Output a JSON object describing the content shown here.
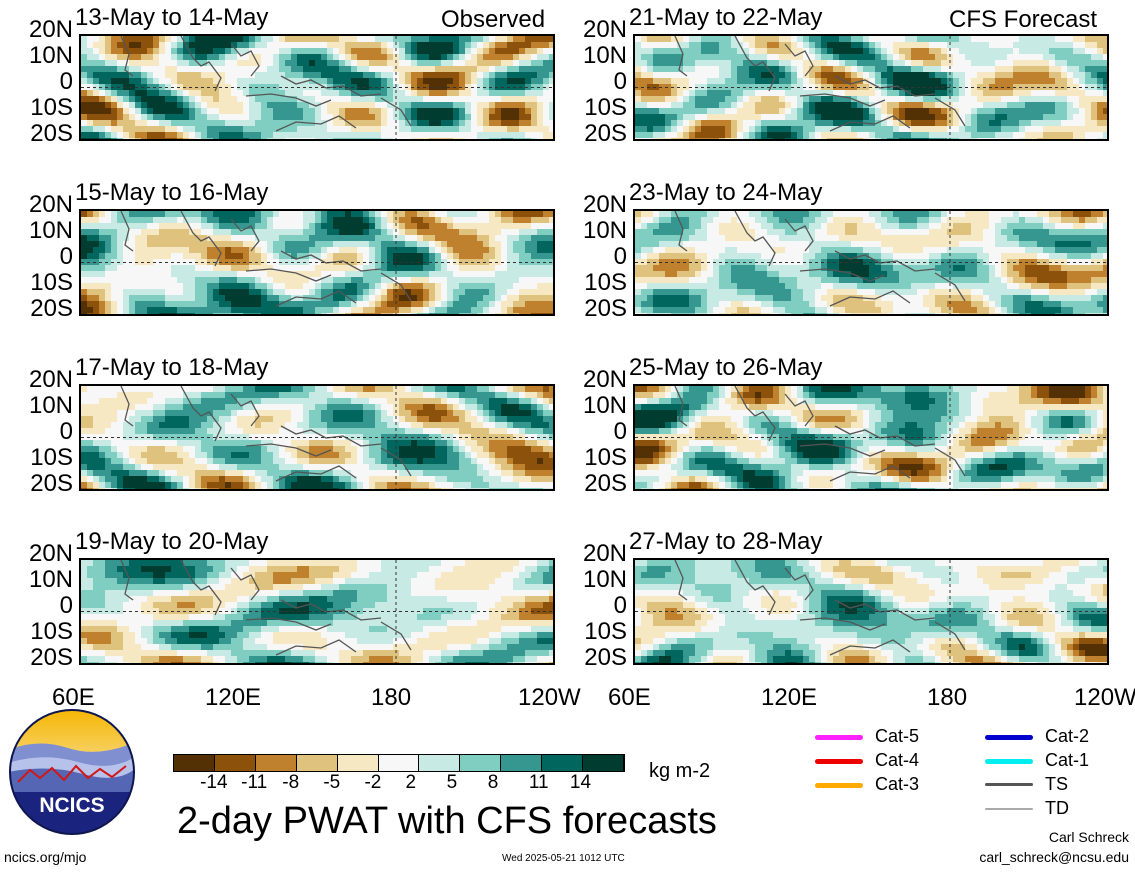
{
  "header": {
    "left_tag": "Observed",
    "right_tag": "CFS Forecast"
  },
  "panels_left": [
    {
      "title": "13-May to 14-May",
      "seed": 3
    },
    {
      "title": "15-May to 16-May",
      "seed": 11
    },
    {
      "title": "17-May to 18-May",
      "seed": 19
    },
    {
      "title": "19-May to 20-May",
      "seed": 27
    }
  ],
  "panels_right": [
    {
      "title": "21-May to 22-May",
      "seed": 5
    },
    {
      "title": "23-May to 24-May",
      "seed": 13
    },
    {
      "title": "25-May to 26-May",
      "seed": 21
    },
    {
      "title": "27-May to 28-May",
      "seed": 29
    }
  ],
  "lat_labels": [
    "20N",
    "10N",
    "0",
    "10S",
    "20S"
  ],
  "lon_labels": [
    "60E",
    "120E",
    "180",
    "120W"
  ],
  "colorbar": {
    "colors": [
      "#543005",
      "#8c510a",
      "#bf812d",
      "#dfc27d",
      "#f6e8c3",
      "#f7f7f7",
      "#c7eae5",
      "#80cdc1",
      "#35978f",
      "#01665e",
      "#003c30"
    ],
    "ticks": [
      "-14",
      "-11",
      "-8",
      "-5",
      "-2",
      "2",
      "5",
      "8",
      "11",
      "14"
    ],
    "units": "kg m-2"
  },
  "title": "2-day PWAT with CFS forecasts",
  "logo": {
    "text": "NCICS"
  },
  "footer": {
    "url": "ncics.org/mjo",
    "timestamp": "Wed 2025-05-21 1012 UTC",
    "author": "Carl Schreck",
    "email": "carl_schreck@ncsu.edu"
  },
  "storm_legend": [
    {
      "label": "Cat-5",
      "color": "#ff22ff"
    },
    {
      "label": "Cat-4",
      "color": "#ee0000"
    },
    {
      "label": "Cat-3",
      "color": "#ffaa00"
    },
    {
      "label": "Cat-2",
      "color": "#0000cc"
    },
    {
      "label": "Cat-1",
      "color": "#00eeee"
    },
    {
      "label": "TS",
      "color": "#555555"
    },
    {
      "label": "TD",
      "color": "#aaaaaa"
    }
  ]
}
